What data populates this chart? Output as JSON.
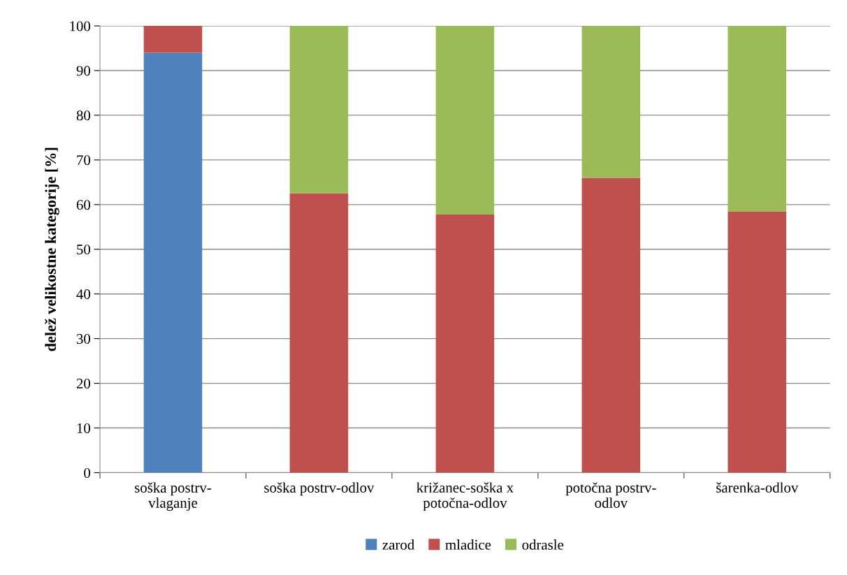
{
  "chart_data": {
    "type": "bar",
    "stacked": true,
    "ylabel": "delež velikostne kategorije [%]",
    "categories": [
      "soška postrv-\nvlaganje",
      "soška postrv-odlov",
      "križanec-soška x\npotočna-odlov",
      "potočna postrv-\nodlov",
      "šarenka-odlov"
    ],
    "series": [
      {
        "name": "zarod",
        "color": "#4f81bd",
        "values": [
          94,
          0,
          0,
          0,
          0
        ]
      },
      {
        "name": "mladice",
        "color": "#c0504d",
        "values": [
          6,
          62.5,
          57.8,
          66,
          58.5
        ]
      },
      {
        "name": "odrasle",
        "color": "#9bbb59",
        "values": [
          0,
          37.5,
          42.2,
          34,
          41.5
        ]
      }
    ],
    "ylim": [
      0,
      100
    ],
    "yticks": [
      0,
      10,
      20,
      30,
      40,
      50,
      60,
      70,
      80,
      90,
      100
    ],
    "grid": "y",
    "legend": "bottom"
  }
}
